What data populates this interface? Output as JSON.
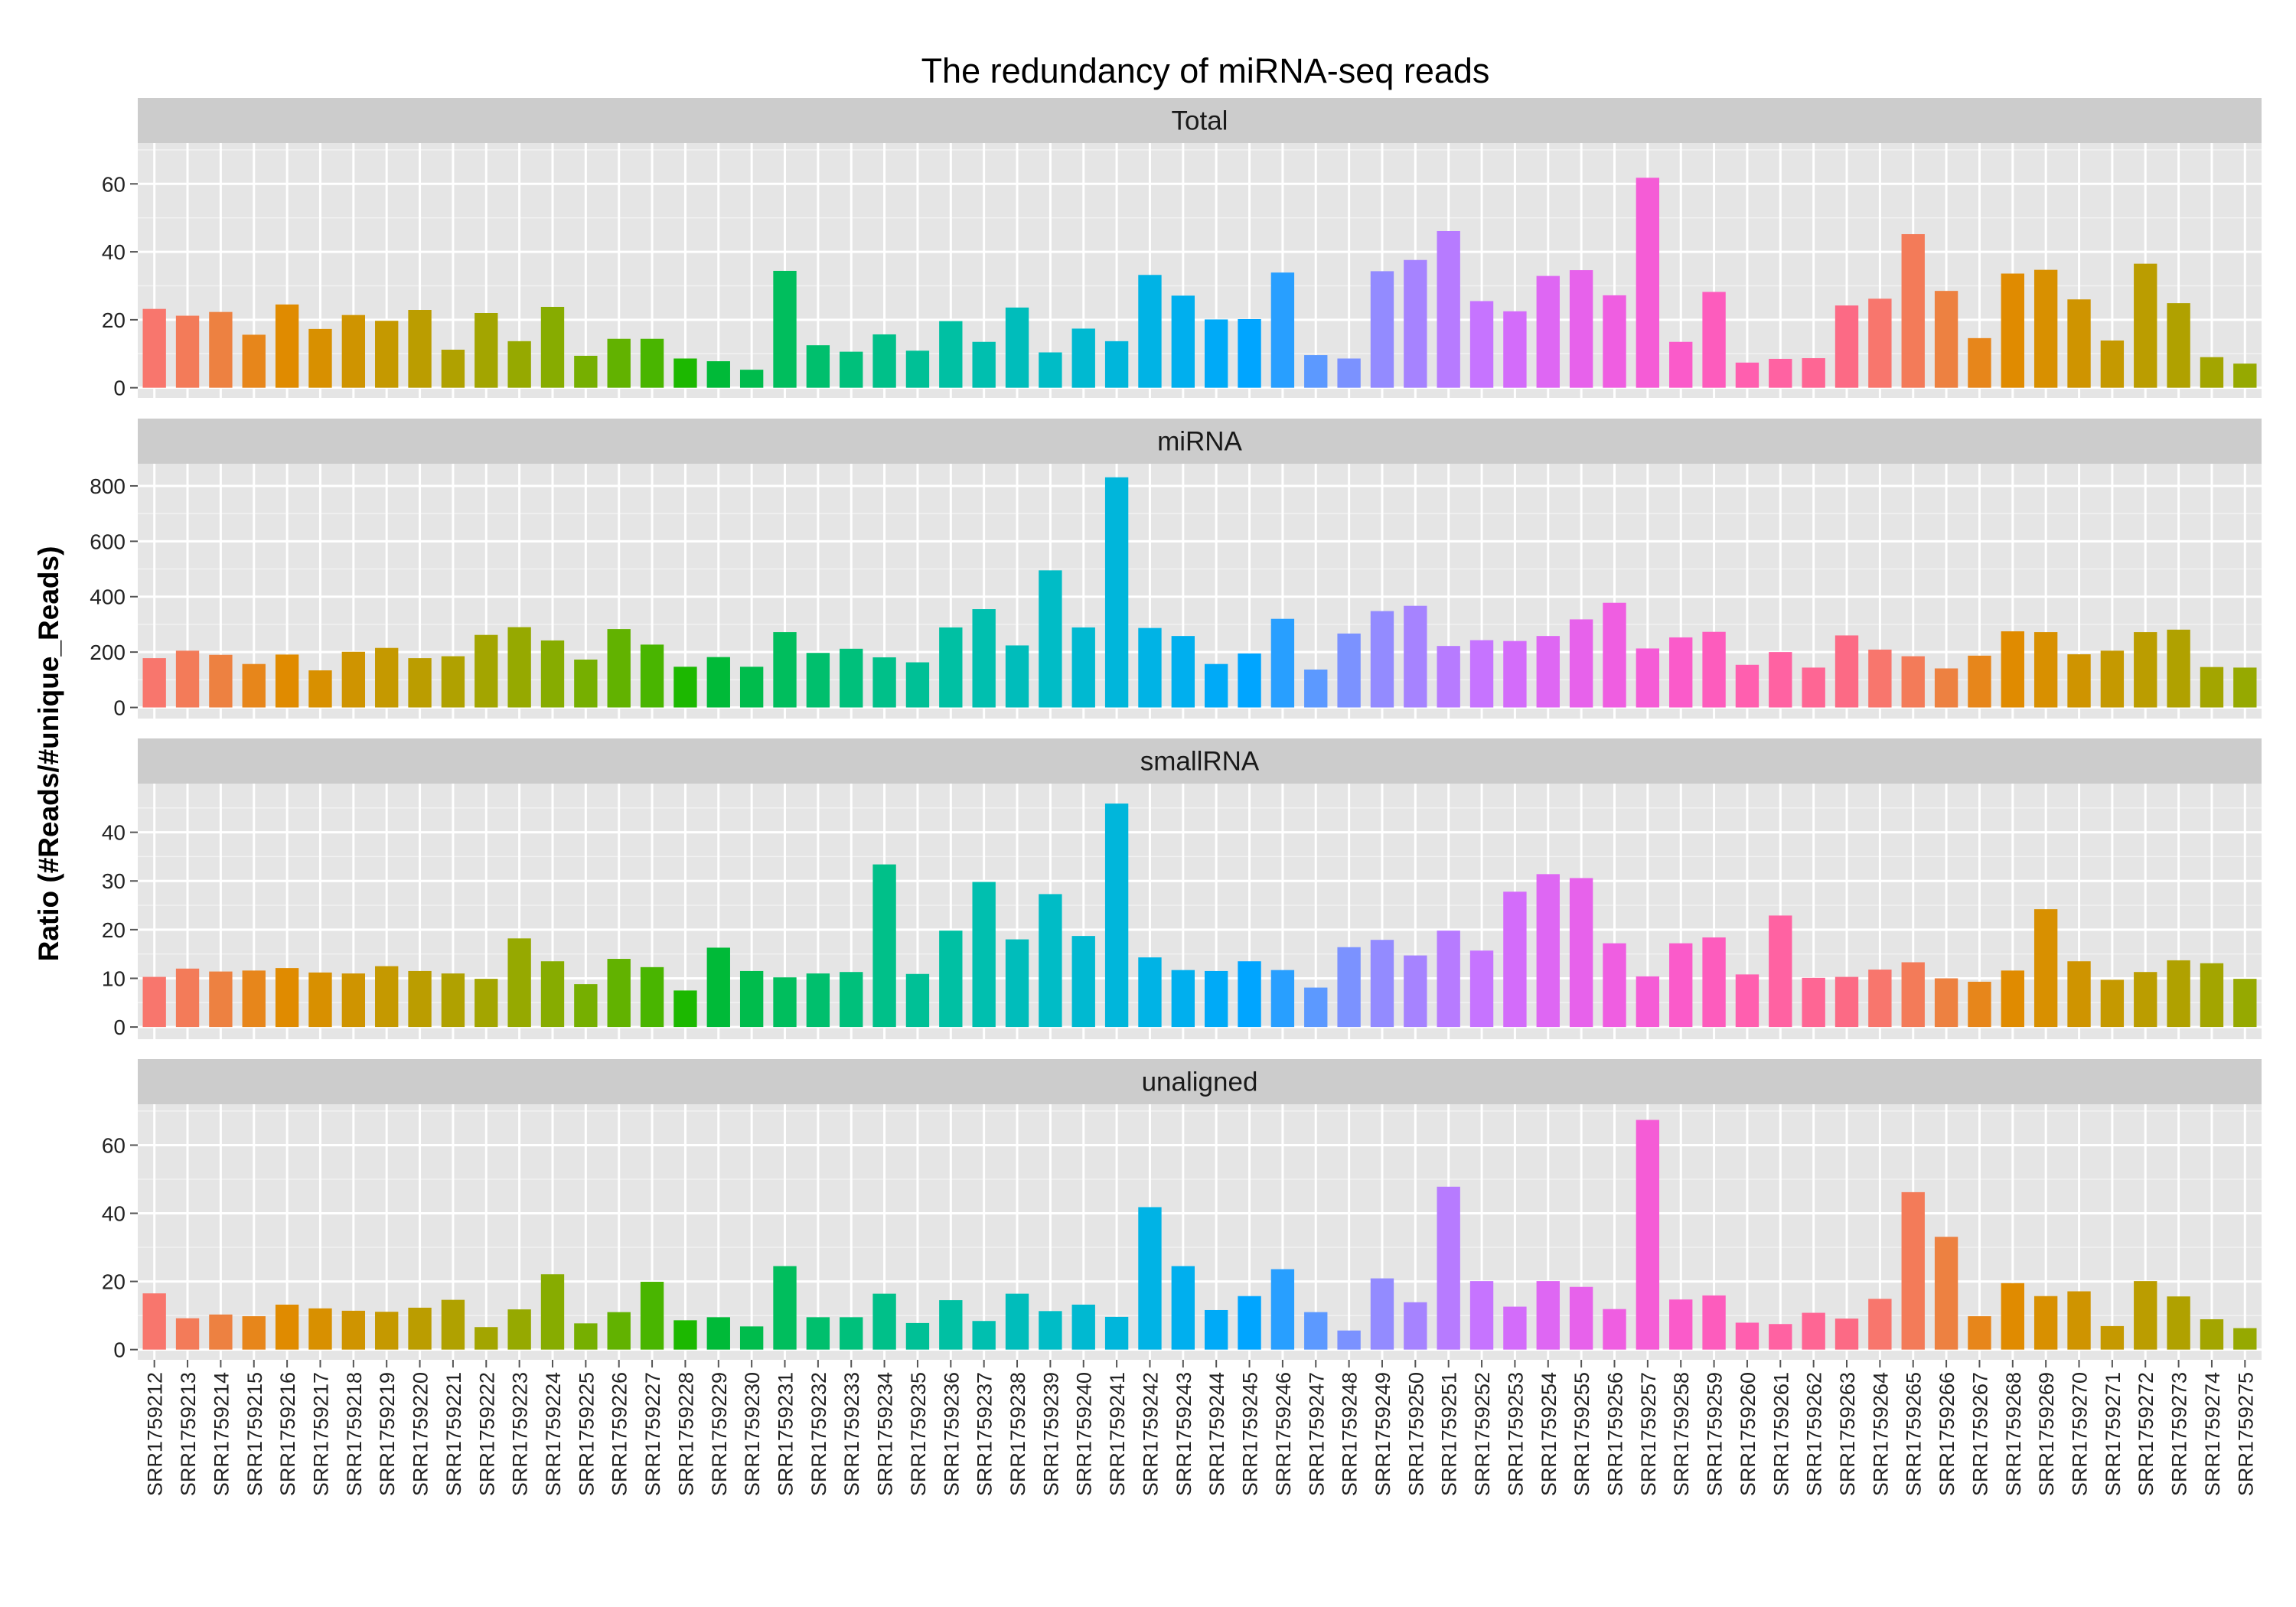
{
  "chart_data": {
    "type": "bar",
    "title": "The redundancy of miRNA-seq reads",
    "ylabel": "Ratio (#Reads/#unique_Reads)",
    "xlabel": "",
    "legend": "none",
    "grid": true,
    "categories": [
      "SRR1759212",
      "SRR1759213",
      "SRR1759214",
      "SRR1759215",
      "SRR1759216",
      "SRR1759217",
      "SRR1759218",
      "SRR1759219",
      "SRR1759220",
      "SRR1759221",
      "SRR1759222",
      "SRR1759223",
      "SRR1759224",
      "SRR1759225",
      "SRR1759226",
      "SRR1759227",
      "SRR1759228",
      "SRR1759229",
      "SRR1759230",
      "SRR1759231",
      "SRR1759232",
      "SRR1759233",
      "SRR1759234",
      "SRR1759235",
      "SRR1759236",
      "SRR1759237",
      "SRR1759238",
      "SRR1759239",
      "SRR1759240",
      "SRR1759241",
      "SRR1759242",
      "SRR1759243",
      "SRR1759244",
      "SRR1759245",
      "SRR1759246",
      "SRR1759247",
      "SRR1759248",
      "SRR1759249",
      "SRR1759250",
      "SRR1759251",
      "SRR1759252",
      "SRR1759253",
      "SRR1759254",
      "SRR1759255",
      "SRR1759256",
      "SRR1759257",
      "SRR1759258",
      "SRR1759259",
      "SRR1759260",
      "SRR1759261",
      "SRR1759262",
      "SRR1759263",
      "SRR1759264",
      "SRR1759265",
      "SRR1759266",
      "SRR1759267",
      "SRR1759268",
      "SRR1759269",
      "SRR1759270",
      "SRR1759271",
      "SRR1759272",
      "SRR1759273",
      "SRR1759274",
      "SRR1759275"
    ],
    "colors": [
      "#F8766D",
      "#F37B59",
      "#ED8141",
      "#E7861B",
      "#E08B00",
      "#D89000",
      "#CF9400",
      "#C59900",
      "#BB9D00",
      "#B0A100",
      "#A3A500",
      "#96A900",
      "#87AC00",
      "#76AF00",
      "#62B200",
      "#49B500",
      "#1CB800",
      "#00BA38",
      "#00BC4C",
      "#00BE5D",
      "#00BF6D",
      "#00C07B",
      "#00C089",
      "#00C096",
      "#00C0A3",
      "#00BFAF",
      "#00BDBB",
      "#00BCC6",
      "#00B9D1",
      "#00B6DB",
      "#00B3E5",
      "#00AFEE",
      "#00AAF7",
      "#00A5FF",
      "#289FFF",
      "#5C99FF",
      "#7B92FF",
      "#938BFF",
      "#A683FF",
      "#B77BFF",
      "#C674FF",
      "#D36CFA",
      "#DE67F3",
      "#E762EB",
      "#EF5EE1",
      "#F55CD6",
      "#FA5BCA",
      "#FD5CBD",
      "#FF5FAF",
      "#FF62A2",
      "#FE6694",
      "#FC6A85",
      "#F8766D",
      "#F37B59",
      "#ED8141",
      "#E7861B",
      "#E08B00",
      "#D89000",
      "#CF9400",
      "#C59900",
      "#BB9D00",
      "#B0A100",
      "#A3A500",
      "#96A900"
    ],
    "panels": [
      {
        "name": "Total",
        "ylim": [
          -3,
          72
        ],
        "yticks": [
          0,
          20,
          40,
          60
        ],
        "values": [
          23.2,
          21.2,
          22.3,
          15.6,
          24.5,
          17.3,
          21.4,
          19.7,
          22.9,
          11.2,
          22.0,
          13.7,
          23.8,
          9.4,
          14.4,
          14.4,
          8.6,
          7.8,
          5.3,
          34.4,
          12.5,
          10.6,
          15.7,
          10.9,
          19.6,
          13.5,
          23.6,
          10.4,
          17.4,
          13.7,
          33.2,
          27.1,
          20.1,
          20.2,
          33.9,
          9.6,
          8.6,
          34.3,
          37.6,
          46.1,
          25.5,
          22.5,
          32.9,
          34.6,
          27.2,
          61.8,
          13.5,
          28.2,
          7.4,
          8.5,
          8.7,
          24.2,
          26.2,
          45.2,
          28.5,
          14.6,
          33.6,
          34.7,
          26.0,
          13.9,
          36.5,
          24.9,
          9.0,
          7.1
        ]
      },
      {
        "name": "miRNA",
        "ylim": [
          -40,
          880
        ],
        "yticks": [
          0,
          200,
          400,
          600,
          800
        ],
        "values": [
          178,
          205,
          190,
          157,
          191,
          134,
          201,
          215,
          178,
          185,
          262,
          290,
          242,
          173,
          283,
          227,
          147,
          182,
          147,
          272,
          197,
          212,
          181,
          163,
          289,
          355,
          224,
          495,
          289,
          831,
          287,
          258,
          157,
          195,
          320,
          137,
          267,
          348,
          367,
          222,
          243,
          240,
          258,
          318,
          378,
          213,
          253,
          273,
          154,
          200,
          144,
          260,
          209,
          185,
          141,
          187,
          275,
          272,
          192,
          205,
          272,
          281,
          146,
          144
        ]
      },
      {
        "name": "smallRNA",
        "ylim": [
          -2.5,
          50
        ],
        "yticks": [
          0,
          10,
          20,
          30,
          40
        ],
        "values": [
          10.3,
          12.0,
          11.4,
          11.6,
          12.1,
          11.2,
          11.0,
          12.5,
          11.5,
          11.0,
          9.9,
          18.2,
          13.5,
          8.8,
          14.0,
          12.3,
          7.5,
          16.3,
          11.5,
          10.2,
          11.0,
          11.3,
          33.4,
          10.9,
          19.8,
          29.8,
          18.0,
          27.3,
          18.7,
          45.9,
          14.3,
          11.7,
          11.5,
          13.5,
          11.7,
          8.1,
          16.4,
          17.9,
          14.7,
          19.8,
          15.7,
          27.8,
          31.4,
          30.6,
          17.2,
          10.4,
          17.2,
          18.4,
          10.8,
          22.9,
          10.1,
          10.3,
          11.8,
          13.3,
          10.0,
          9.3,
          11.6,
          24.2,
          13.5,
          9.7,
          11.3,
          13.7,
          13.1,
          9.9
        ]
      },
      {
        "name": "unaligned",
        "ylim": [
          -3,
          72
        ],
        "yticks": [
          0,
          20,
          40,
          60
        ],
        "values": [
          16.5,
          9.2,
          10.3,
          9.8,
          13.2,
          12.1,
          11.4,
          11.1,
          12.3,
          14.6,
          6.6,
          11.8,
          22.1,
          7.7,
          11.0,
          19.9,
          8.6,
          9.5,
          6.8,
          24.5,
          9.5,
          9.5,
          16.4,
          7.8,
          14.5,
          8.4,
          16.4,
          11.3,
          13.2,
          9.6,
          41.8,
          24.5,
          11.6,
          15.7,
          23.6,
          11.0,
          5.6,
          20.9,
          13.9,
          47.8,
          20.1,
          12.6,
          20.1,
          18.4,
          11.9,
          67.4,
          14.7,
          15.9,
          7.9,
          7.5,
          10.8,
          9.1,
          14.9,
          46.2,
          33.1,
          9.8,
          19.5,
          15.7,
          17.1,
          6.9,
          20.1,
          15.6,
          8.9,
          6.3
        ]
      }
    ]
  }
}
